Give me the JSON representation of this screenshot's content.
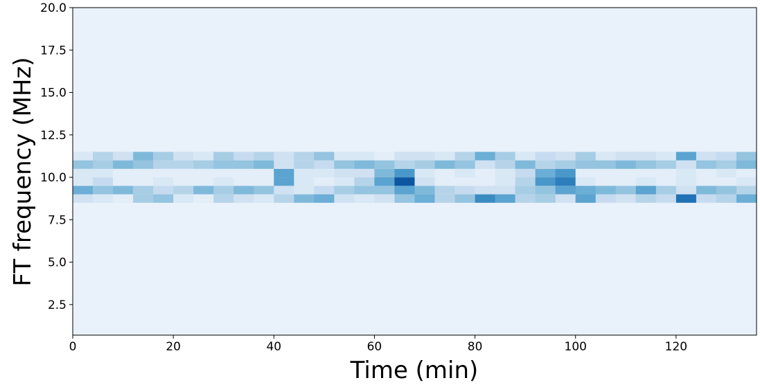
{
  "chart_data": {
    "type": "heatmap",
    "colormap": "Blues",
    "x_label": "Time (min)",
    "y_label": "FT frequency (MHz)",
    "xlim": [
      0,
      136
    ],
    "ylim": [
      0.7,
      20
    ],
    "xticks": [
      0,
      20,
      40,
      60,
      80,
      100,
      120
    ],
    "yticks": [
      2.5,
      {
        "value": 5,
        "label": "5.0"
      },
      7.5,
      {
        "value": 10,
        "label": "10.0"
      },
      12.5,
      {
        "value": 15,
        "label": "15.0"
      },
      17.5,
      {
        "value": 20,
        "label": "20.0"
      }
    ],
    "grid": false,
    "x_bins": [
      0,
      4,
      8,
      12,
      16,
      20,
      24,
      28,
      32,
      36,
      40,
      44,
      48,
      52,
      56,
      60,
      64,
      68,
      72,
      76,
      80,
      84,
      88,
      92,
      96,
      100,
      104,
      108,
      112,
      116,
      120,
      124,
      128,
      132,
      136
    ],
    "y_bins": [
      8.5,
      9.0,
      9.5,
      10.0,
      10.5,
      11.0,
      11.5
    ],
    "z": [
      [
        0.2,
        0.15,
        0.1,
        0.35,
        0.4,
        0.15,
        0.1,
        0.3,
        0.2,
        0.15,
        0.3,
        0.45,
        0.5,
        0.2,
        0.15,
        0.2,
        0.4,
        0.5,
        0.3,
        0.4,
        0.65,
        0.55,
        0.3,
        0.35,
        0.2,
        0.55,
        0.25,
        0.2,
        0.3,
        0.25,
        0.75,
        0.25,
        0.3,
        0.5
      ],
      [
        0.5,
        0.4,
        0.45,
        0.35,
        0.25,
        0.3,
        0.45,
        0.35,
        0.45,
        0.4,
        0.2,
        0.15,
        0.25,
        0.35,
        0.4,
        0.4,
        0.55,
        0.45,
        0.3,
        0.25,
        0.2,
        0.2,
        0.35,
        0.4,
        0.55,
        0.5,
        0.45,
        0.4,
        0.55,
        0.35,
        0.2,
        0.45,
        0.4,
        0.3
      ],
      [
        0.15,
        0.25,
        0.1,
        0.1,
        0.15,
        0.1,
        0.1,
        0.15,
        0.1,
        0.1,
        0.55,
        0.15,
        0.1,
        0.15,
        0.3,
        0.55,
        0.85,
        0.2,
        0.1,
        0.1,
        0.1,
        0.15,
        0.3,
        0.6,
        0.7,
        0.15,
        0.1,
        0.1,
        0.15,
        0.1,
        0.15,
        0.1,
        0.1,
        0.15
      ],
      [
        0.15,
        0.15,
        0.1,
        0.1,
        0.1,
        0.1,
        0.1,
        0.1,
        0.1,
        0.1,
        0.55,
        0.15,
        0.15,
        0.2,
        0.2,
        0.45,
        0.6,
        0.15,
        0.1,
        0.15,
        0.1,
        0.15,
        0.25,
        0.5,
        0.6,
        0.1,
        0.1,
        0.1,
        0.1,
        0.1,
        0.15,
        0.1,
        0.15,
        0.1
      ],
      [
        0.4,
        0.35,
        0.45,
        0.4,
        0.3,
        0.3,
        0.35,
        0.4,
        0.4,
        0.45,
        0.2,
        0.3,
        0.25,
        0.4,
        0.45,
        0.4,
        0.3,
        0.35,
        0.45,
        0.4,
        0.2,
        0.3,
        0.45,
        0.3,
        0.35,
        0.4,
        0.4,
        0.45,
        0.4,
        0.35,
        0.2,
        0.4,
        0.35,
        0.45
      ],
      [
        0.15,
        0.3,
        0.2,
        0.45,
        0.35,
        0.2,
        0.15,
        0.35,
        0.25,
        0.3,
        0.2,
        0.3,
        0.4,
        0.15,
        0.15,
        0.1,
        0.2,
        0.2,
        0.15,
        0.3,
        0.5,
        0.35,
        0.15,
        0.25,
        0.2,
        0.35,
        0.15,
        0.2,
        0.2,
        0.15,
        0.55,
        0.2,
        0.25,
        0.4
      ]
    ]
  }
}
